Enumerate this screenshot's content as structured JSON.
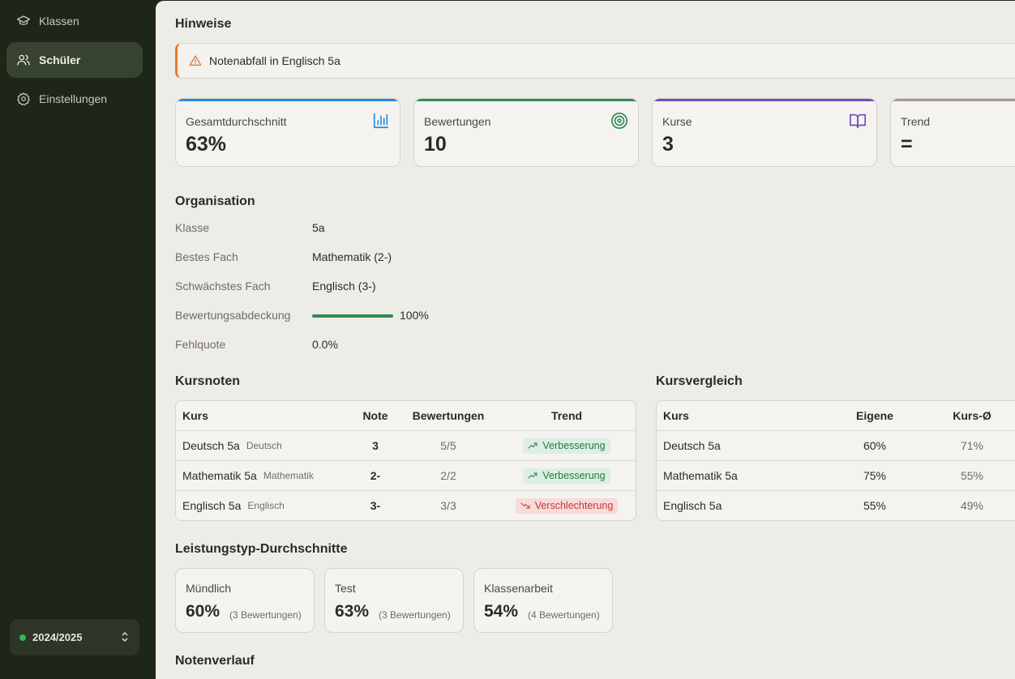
{
  "sidebar": {
    "items": [
      {
        "label": "Klassen",
        "icon": "graduation-cap-icon"
      },
      {
        "label": "Schüler",
        "icon": "users-icon",
        "active": true
      },
      {
        "label": "Einstellungen",
        "icon": "gear-icon"
      }
    ],
    "school_year": "2024/2025"
  },
  "hints": {
    "title": "Hinweise",
    "alert": "Notenabfall in Englisch 5a"
  },
  "stats": [
    {
      "label": "Gesamtdurchschnitt",
      "value": "63%",
      "color": "#2a8ad8",
      "icon": "bar-chart-icon"
    },
    {
      "label": "Bewertungen",
      "value": "10",
      "color": "#2e8b57",
      "icon": "target-icon"
    },
    {
      "label": "Kurse",
      "value": "3",
      "color": "#6a4fc0",
      "icon": "book-open-icon"
    },
    {
      "label": "Trend",
      "value": "=",
      "color": "#a19e92",
      "icon": ""
    }
  ],
  "organisation": {
    "title": "Organisation",
    "rows": [
      {
        "key": "Klasse",
        "value": "5a"
      },
      {
        "key": "Bestes Fach",
        "value": "Mathematik (2-)"
      },
      {
        "key": "Schwächstes Fach",
        "value": "Englisch (3-)"
      },
      {
        "key": "Bewertungsabdeckung",
        "value": "100%",
        "progress": 1.0
      },
      {
        "key": "Fehlquote",
        "value": "0.0%"
      }
    ]
  },
  "kursnoten": {
    "title": "Kursnoten",
    "headers": [
      "Kurs",
      "Note",
      "Bewertungen",
      "Trend"
    ],
    "rows": [
      {
        "kurs": "Deutsch 5a",
        "fach": "Deutsch",
        "note": "3",
        "bewertungen": "5/5",
        "trend": "Verbesserung",
        "trend_dir": "up"
      },
      {
        "kurs": "Mathematik 5a",
        "fach": "Mathematik",
        "note": "2-",
        "bewertungen": "2/2",
        "trend": "Verbesserung",
        "trend_dir": "up"
      },
      {
        "kurs": "Englisch 5a",
        "fach": "Englisch",
        "note": "3-",
        "bewertungen": "3/3",
        "trend": "Verschlechterung",
        "trend_dir": "down"
      }
    ]
  },
  "kursvergleich": {
    "title": "Kursvergleich",
    "headers": [
      "Kurs",
      "Eigene",
      "Kurs-Ø"
    ],
    "rows": [
      {
        "kurs": "Deutsch 5a",
        "eigene": "60%",
        "kurs_avg": "71%"
      },
      {
        "kurs": "Mathematik 5a",
        "eigene": "75%",
        "kurs_avg": "55%"
      },
      {
        "kurs": "Englisch 5a",
        "eigene": "55%",
        "kurs_avg": "49%"
      }
    ]
  },
  "leistungstyp": {
    "title": "Leistungstyp-Durchschnitte",
    "items": [
      {
        "label": "Mündlich",
        "value": "60%",
        "count": "(3 Bewertungen)"
      },
      {
        "label": "Test",
        "value": "63%",
        "count": "(3 Bewertungen)"
      },
      {
        "label": "Klassenarbeit",
        "value": "54%",
        "count": "(4 Bewertungen)"
      }
    ]
  },
  "notenverlauf": {
    "title": "Notenverlauf"
  }
}
